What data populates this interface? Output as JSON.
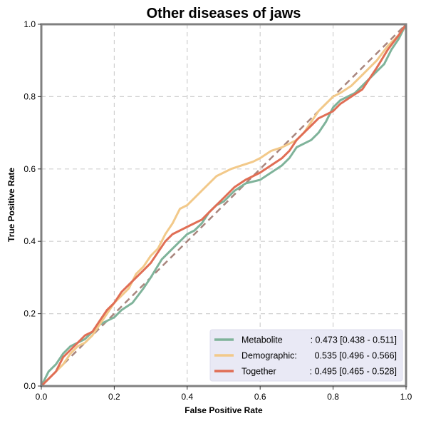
{
  "chart_data": {
    "type": "line",
    "title": "Other diseases of jaws",
    "xlabel": "False Positive Rate",
    "ylabel": "True Positive Rate",
    "xlim": [
      0,
      1
    ],
    "ylim": [
      0,
      1
    ],
    "xticks": [
      "0.0",
      "0.2",
      "0.4",
      "0.6",
      "0.8",
      "1.0"
    ],
    "yticks": [
      "0.0",
      "0.2",
      "0.4",
      "0.6",
      "0.8",
      "1.0"
    ],
    "grid": true,
    "legend_position": "bottom-right",
    "diagonal_reference": {
      "from": [
        0,
        0
      ],
      "to": [
        1,
        1
      ],
      "color": "#a9867e",
      "style": "dashed"
    },
    "series": [
      {
        "name": "Metabolite",
        "stat": ": 0.473 [0.438 - 0.511]",
        "color": "#7fb39a",
        "x": [
          0,
          0.01,
          0.02,
          0.04,
          0.06,
          0.08,
          0.1,
          0.12,
          0.14,
          0.16,
          0.18,
          0.2,
          0.22,
          0.25,
          0.28,
          0.3,
          0.33,
          0.36,
          0.38,
          0.4,
          0.42,
          0.44,
          0.46,
          0.48,
          0.5,
          0.53,
          0.56,
          0.6,
          0.63,
          0.66,
          0.68,
          0.7,
          0.72,
          0.74,
          0.76,
          0.78,
          0.8,
          0.82,
          0.84,
          0.86,
          0.88,
          0.9,
          0.92,
          0.94,
          0.96,
          0.98,
          1.0
        ],
        "y": [
          0,
          0.02,
          0.04,
          0.06,
          0.09,
          0.11,
          0.12,
          0.13,
          0.15,
          0.17,
          0.18,
          0.19,
          0.21,
          0.23,
          0.27,
          0.3,
          0.35,
          0.38,
          0.4,
          0.42,
          0.43,
          0.45,
          0.48,
          0.5,
          0.51,
          0.54,
          0.56,
          0.57,
          0.59,
          0.61,
          0.63,
          0.66,
          0.67,
          0.68,
          0.7,
          0.73,
          0.77,
          0.79,
          0.8,
          0.81,
          0.83,
          0.85,
          0.87,
          0.89,
          0.93,
          0.96,
          1.0
        ]
      },
      {
        "name": "Demographic:",
        "stat": " 0.535 [0.496 - 0.566]",
        "color": "#f2c98a",
        "x": [
          0,
          0.02,
          0.04,
          0.06,
          0.08,
          0.1,
          0.12,
          0.14,
          0.16,
          0.18,
          0.2,
          0.22,
          0.24,
          0.26,
          0.28,
          0.3,
          0.32,
          0.34,
          0.36,
          0.38,
          0.4,
          0.42,
          0.44,
          0.46,
          0.48,
          0.5,
          0.52,
          0.55,
          0.58,
          0.6,
          0.63,
          0.66,
          0.68,
          0.7,
          0.72,
          0.74,
          0.76,
          0.78,
          0.8,
          0.82,
          0.85,
          0.88,
          0.9,
          0.92,
          0.95,
          0.98,
          1.0
        ],
        "y": [
          0,
          0.02,
          0.04,
          0.06,
          0.09,
          0.11,
          0.12,
          0.14,
          0.17,
          0.2,
          0.23,
          0.25,
          0.27,
          0.31,
          0.33,
          0.36,
          0.38,
          0.42,
          0.45,
          0.49,
          0.5,
          0.52,
          0.54,
          0.56,
          0.58,
          0.59,
          0.6,
          0.61,
          0.62,
          0.63,
          0.65,
          0.66,
          0.67,
          0.68,
          0.7,
          0.73,
          0.76,
          0.78,
          0.8,
          0.81,
          0.83,
          0.86,
          0.88,
          0.9,
          0.94,
          0.97,
          1.0
        ]
      },
      {
        "name": "Together",
        "stat": ": 0.495 [0.465 - 0.528]",
        "color": "#e06e55",
        "x": [
          0,
          0.01,
          0.02,
          0.04,
          0.06,
          0.08,
          0.1,
          0.12,
          0.14,
          0.16,
          0.18,
          0.2,
          0.22,
          0.24,
          0.26,
          0.28,
          0.3,
          0.32,
          0.34,
          0.36,
          0.38,
          0.4,
          0.42,
          0.44,
          0.46,
          0.48,
          0.5,
          0.53,
          0.56,
          0.6,
          0.63,
          0.66,
          0.68,
          0.7,
          0.72,
          0.74,
          0.76,
          0.78,
          0.8,
          0.82,
          0.85,
          0.88,
          0.9,
          0.92,
          0.95,
          0.98,
          1.0
        ],
        "y": [
          0,
          0.01,
          0.02,
          0.04,
          0.08,
          0.1,
          0.12,
          0.14,
          0.15,
          0.18,
          0.21,
          0.23,
          0.26,
          0.28,
          0.3,
          0.32,
          0.34,
          0.37,
          0.4,
          0.42,
          0.43,
          0.44,
          0.45,
          0.46,
          0.48,
          0.5,
          0.52,
          0.55,
          0.57,
          0.59,
          0.61,
          0.63,
          0.65,
          0.68,
          0.7,
          0.72,
          0.74,
          0.75,
          0.76,
          0.78,
          0.8,
          0.82,
          0.85,
          0.88,
          0.93,
          0.97,
          1.0
        ]
      }
    ]
  }
}
